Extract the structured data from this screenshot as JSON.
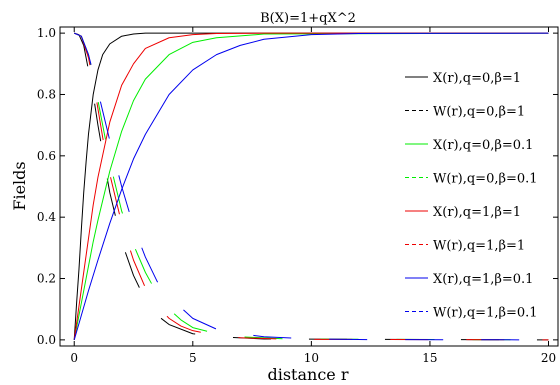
{
  "chart_data": {
    "type": "line",
    "title": "B(X)=1+qX^2",
    "xlabel": "distance r",
    "ylabel": "Fields",
    "xlim": [
      -0.6,
      20.4
    ],
    "ylim": [
      -0.02,
      1.02
    ],
    "xticks": [
      0,
      5,
      10,
      15,
      20
    ],
    "yticks": [
      0.0,
      0.2,
      0.4,
      0.6,
      0.8,
      1.0
    ],
    "xtick_labels": [
      "0",
      "5",
      "10",
      "15",
      "20"
    ],
    "ytick_labels": [
      "0.0",
      "0.2",
      "0.4",
      "0.6",
      "0.8",
      "1.0"
    ],
    "legend_position": "right",
    "grid": false,
    "series": [
      {
        "name": "X(r),q=0,β=1",
        "color": "#000000",
        "dash": "solid",
        "x": [
          0,
          0.1,
          0.2,
          0.3,
          0.4,
          0.5,
          0.6,
          0.8,
          1.0,
          1.2,
          1.5,
          2.0,
          2.5,
          3.0,
          4.0,
          6.0,
          20
        ],
        "y": [
          0.0,
          0.12,
          0.23,
          0.36,
          0.48,
          0.58,
          0.67,
          0.8,
          0.88,
          0.93,
          0.965,
          0.99,
          0.997,
          1.0,
          1.0,
          1.0,
          1.0
        ]
      },
      {
        "name": "W(r),q=0,β=1",
        "color": "#000000",
        "dash": "dash",
        "x": [
          0,
          0.2,
          0.4,
          0.6,
          0.8,
          1.0,
          1.2,
          1.5,
          2.0,
          2.5,
          3.0,
          3.5,
          4.0,
          5.0,
          6.0,
          8.0,
          20
        ],
        "y": [
          1.0,
          0.995,
          0.96,
          0.88,
          0.8,
          0.7,
          0.61,
          0.48,
          0.32,
          0.21,
          0.13,
          0.08,
          0.05,
          0.02,
          0.01,
          0.003,
          0.0
        ]
      },
      {
        "name": "X(r),q=0,β=0.1",
        "color": "#00ee00",
        "dash": "solid",
        "x": [
          0,
          0.2,
          0.4,
          0.6,
          0.8,
          1.0,
          1.5,
          2.0,
          2.5,
          3.0,
          4.0,
          5.0,
          6.0,
          8.0,
          20
        ],
        "y": [
          0.0,
          0.08,
          0.16,
          0.24,
          0.32,
          0.39,
          0.55,
          0.68,
          0.78,
          0.85,
          0.93,
          0.97,
          0.985,
          0.997,
          1.0
        ]
      },
      {
        "name": "W(r),q=0,β=0.1",
        "color": "#00ee00",
        "dash": "dash",
        "x": [
          0,
          0.3,
          0.6,
          0.9,
          1.2,
          1.5,
          2.0,
          2.5,
          3.0,
          3.5,
          4.0,
          4.5,
          5.0,
          6.0,
          7.0,
          9.0,
          20
        ],
        "y": [
          1.0,
          0.99,
          0.93,
          0.82,
          0.7,
          0.58,
          0.42,
          0.31,
          0.22,
          0.15,
          0.1,
          0.065,
          0.04,
          0.02,
          0.01,
          0.003,
          0.0
        ]
      },
      {
        "name": "X(r),q=1,β=1",
        "color": "#ee0000",
        "dash": "solid",
        "x": [
          0,
          0.2,
          0.4,
          0.6,
          0.8,
          1.0,
          1.5,
          2.0,
          2.5,
          3.0,
          4.0,
          5.0,
          6.0,
          8.0,
          20
        ],
        "y": [
          0.0,
          0.11,
          0.22,
          0.33,
          0.44,
          0.53,
          0.71,
          0.83,
          0.9,
          0.95,
          0.985,
          0.995,
          0.999,
          1.0,
          1.0
        ]
      },
      {
        "name": "W(r),q=1,β=1",
        "color": "#ee0000",
        "dash": "dash",
        "x": [
          0,
          0.3,
          0.6,
          0.9,
          1.2,
          1.5,
          2.0,
          2.5,
          3.0,
          3.5,
          4.0,
          4.5,
          5.0,
          6.0,
          7.0,
          9.0,
          20
        ],
        "y": [
          1.0,
          0.99,
          0.92,
          0.8,
          0.66,
          0.54,
          0.38,
          0.26,
          0.17,
          0.11,
          0.07,
          0.045,
          0.03,
          0.015,
          0.007,
          0.002,
          0.0
        ]
      },
      {
        "name": "X(r),q=1,β=0.1",
        "color": "#0000ee",
        "dash": "solid",
        "x": [
          0,
          0.3,
          0.6,
          1.0,
          1.5,
          2.0,
          2.5,
          3.0,
          4.0,
          5.0,
          6.0,
          7.0,
          8.0,
          10.0,
          12.0,
          20
        ],
        "y": [
          0.0,
          0.08,
          0.16,
          0.26,
          0.38,
          0.49,
          0.59,
          0.67,
          0.8,
          0.88,
          0.93,
          0.96,
          0.98,
          0.995,
          0.999,
          1.0
        ]
      },
      {
        "name": "W(r),q=1,β=0.1",
        "color": "#0000ee",
        "dash": "dash",
        "x": [
          0,
          0.3,
          0.6,
          1.0,
          1.5,
          2.0,
          2.5,
          3.0,
          3.5,
          4.0,
          5.0,
          6.0,
          7.0,
          8.0,
          10.0,
          12.0,
          20
        ],
        "y": [
          1.0,
          0.99,
          0.93,
          0.81,
          0.65,
          0.5,
          0.37,
          0.27,
          0.19,
          0.14,
          0.07,
          0.035,
          0.02,
          0.01,
          0.003,
          0.001,
          0.0
        ]
      }
    ]
  }
}
